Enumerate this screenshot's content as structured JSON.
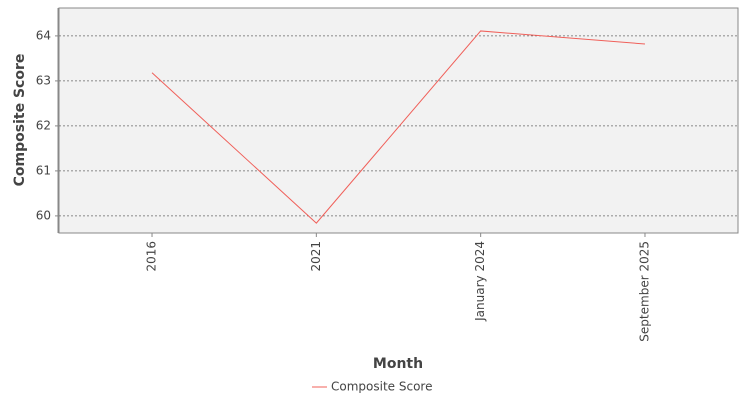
{
  "chart_data": {
    "type": "line",
    "x_label": "Month",
    "y_label": "Composite Score",
    "categories": [
      "2016",
      "2021",
      "January 2024",
      "September 2025"
    ],
    "series": [
      {
        "name": "Composite Score",
        "color": "#f0605a",
        "values": [
          63.18,
          59.84,
          64.11,
          63.82
        ]
      }
    ],
    "ylim": [
      59.62,
      64.62
    ],
    "yticks": [
      60,
      61,
      62,
      63,
      64
    ],
    "grid": true,
    "legend": "bottom"
  }
}
